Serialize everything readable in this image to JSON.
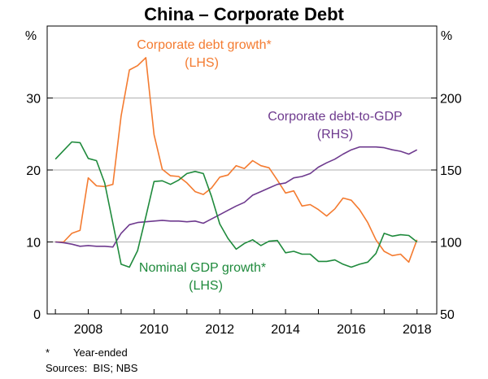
{
  "chart_data": {
    "type": "line",
    "title": "China – Corporate Debt",
    "left_axis": {
      "unit": "%",
      "range": [
        0,
        40
      ],
      "ticks": [
        0,
        10,
        20,
        30
      ]
    },
    "right_axis": {
      "unit": "%",
      "range": [
        50,
        250
      ],
      "ticks": [
        50,
        100,
        150,
        200
      ]
    },
    "x_axis": {
      "range": [
        2006.75,
        2018.6
      ],
      "ticks": [
        2008,
        2010,
        2012,
        2014,
        2016,
        2018
      ],
      "tick_labels": [
        "2008",
        "2010",
        "2012",
        "2014",
        "2016",
        "2018"
      ]
    },
    "gridlines": [
      10,
      20,
      30
    ],
    "series": [
      {
        "name": "Corporate debt growth*",
        "sublabel": "(LHS)",
        "axis": "left",
        "color": "#f47b30",
        "x": [
          2007.0,
          2007.25,
          2007.5,
          2007.75,
          2008.0,
          2008.25,
          2008.5,
          2008.75,
          2009.0,
          2009.25,
          2009.5,
          2009.75,
          2010.0,
          2010.25,
          2010.5,
          2010.75,
          2011.0,
          2011.25,
          2011.5,
          2011.75,
          2012.0,
          2012.25,
          2012.5,
          2012.75,
          2013.0,
          2013.25,
          2013.5,
          2013.75,
          2014.0,
          2014.25,
          2014.5,
          2014.75,
          2015.0,
          2015.25,
          2015.5,
          2015.75,
          2016.0,
          2016.25,
          2016.5,
          2016.75,
          2017.0,
          2017.25,
          2017.5,
          2017.75,
          2018.0
        ],
        "values": [
          10.0,
          10.0,
          11.2,
          11.6,
          18.9,
          17.8,
          17.7,
          18.0,
          27.5,
          33.9,
          34.5,
          35.6,
          24.9,
          20.1,
          19.2,
          19.1,
          18.2,
          17.0,
          16.6,
          17.5,
          19.0,
          19.3,
          20.6,
          20.2,
          21.3,
          20.6,
          20.3,
          18.6,
          16.8,
          17.1,
          15.0,
          15.2,
          14.5,
          13.6,
          14.6,
          16.1,
          15.8,
          14.5,
          12.7,
          10.3,
          8.7,
          8.1,
          8.3,
          7.2,
          10.3
        ]
      },
      {
        "name": "Corporate debt-to-GDP",
        "sublabel": "(RHS)",
        "axis": "right",
        "color": "#6e3a8e",
        "x": [
          2007.0,
          2007.25,
          2007.5,
          2007.75,
          2008.0,
          2008.25,
          2008.5,
          2008.75,
          2009.0,
          2009.25,
          2009.5,
          2009.75,
          2010.0,
          2010.25,
          2010.5,
          2010.75,
          2011.0,
          2011.25,
          2011.5,
          2011.75,
          2012.0,
          2012.25,
          2012.5,
          2012.75,
          2013.0,
          2013.25,
          2013.5,
          2013.75,
          2014.0,
          2014.25,
          2014.5,
          2014.75,
          2015.0,
          2015.25,
          2015.5,
          2015.75,
          2016.0,
          2016.25,
          2016.5,
          2016.75,
          2017.0,
          2017.25,
          2017.5,
          2017.75,
          2018.0
        ],
        "values": [
          100,
          99.5,
          98.5,
          97,
          97.5,
          97,
          97,
          96.5,
          106,
          112,
          113.5,
          114,
          114.5,
          115,
          114.5,
          114.5,
          114,
          114.5,
          113,
          116,
          119,
          122,
          125,
          127.5,
          132.5,
          135,
          137.5,
          140,
          141,
          144.5,
          145.5,
          147.5,
          152,
          155,
          157.5,
          161,
          164,
          166,
          166,
          166,
          165.5,
          164,
          163,
          161,
          164
        ]
      },
      {
        "name": "Nominal GDP growth*",
        "sublabel": "(LHS)",
        "axis": "left",
        "color": "#1f8a3c",
        "x": [
          2007.0,
          2007.25,
          2007.5,
          2007.75,
          2008.0,
          2008.25,
          2008.5,
          2008.75,
          2009.0,
          2009.25,
          2009.5,
          2009.75,
          2010.0,
          2010.25,
          2010.5,
          2010.75,
          2011.0,
          2011.25,
          2011.5,
          2011.75,
          2012.0,
          2012.25,
          2012.5,
          2012.75,
          2013.0,
          2013.25,
          2013.5,
          2013.75,
          2014.0,
          2014.25,
          2014.5,
          2014.75,
          2015.0,
          2015.25,
          2015.5,
          2015.75,
          2016.0,
          2016.25,
          2016.5,
          2016.75,
          2017.0,
          2017.25,
          2017.5,
          2017.75,
          2018.0
        ],
        "values": [
          21.5,
          22.7,
          23.9,
          23.8,
          21.6,
          21.3,
          18.2,
          12.6,
          6.9,
          6.5,
          8.8,
          13.5,
          18.4,
          18.5,
          18.0,
          18.6,
          19.5,
          19.8,
          19.5,
          16.3,
          12.5,
          10.5,
          9.0,
          9.8,
          10.3,
          9.5,
          10.1,
          10.2,
          8.5,
          8.7,
          8.3,
          8.3,
          7.3,
          7.3,
          7.5,
          6.9,
          6.5,
          6.9,
          7.2,
          8.4,
          11.2,
          10.8,
          11.0,
          10.9,
          10.0
        ]
      }
    ],
    "footnotes": {
      "marker": "*",
      "text": "Year-ended",
      "sources": "Sources:  BIS; NBS"
    }
  }
}
